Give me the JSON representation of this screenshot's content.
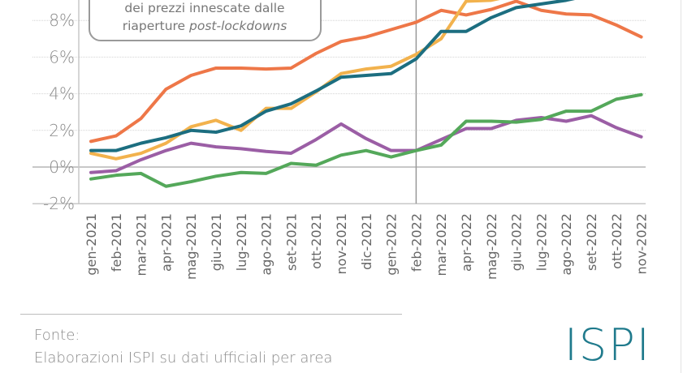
{
  "chart_data": {
    "type": "line",
    "categories": [
      "gen-2021",
      "feb-2021",
      "mar-2021",
      "apr-2021",
      "mag-2021",
      "giu-2021",
      "lug-2021",
      "ago-2021",
      "set-2021",
      "ott-2021",
      "nov-2021",
      "dic-2021",
      "gen-2022",
      "feb-2022",
      "mar-2022",
      "apr-2022",
      "mag-2022",
      "giu-2022",
      "lug-2022",
      "ago-2022",
      "set-2022",
      "ott-2022",
      "nov-2022"
    ],
    "yticks": [
      "-2%",
      "0%",
      "2%",
      "4%",
      "6%",
      "8%"
    ],
    "ylim": [
      -2,
      9
    ],
    "grid": true,
    "marker_category": "feb-2022",
    "annotation": {
      "line1": "dei prezzi innescate dalle",
      "line2_plain": "riaperture ",
      "line2_italic": "post-lockdowns"
    },
    "series": [
      {
        "color": "#ee7748",
        "values": [
          1.4,
          1.7,
          2.65,
          4.25,
          5.0,
          5.4,
          5.4,
          5.35,
          5.4,
          6.2,
          6.85,
          7.1,
          7.5,
          7.9,
          8.55,
          8.3,
          8.6,
          9.05,
          8.55,
          8.35,
          8.3,
          7.75,
          7.1
        ]
      },
      {
        "color": "#f2b24d",
        "values": [
          0.75,
          0.45,
          0.75,
          1.3,
          2.2,
          2.55,
          2.0,
          3.2,
          3.2,
          4.1,
          5.1,
          5.35,
          5.5,
          6.15,
          7.0,
          9.05,
          9.1,
          9.4,
          null,
          null,
          null,
          null,
          null
        ]
      },
      {
        "color": "#1c6e80",
        "values": [
          0.9,
          0.9,
          1.3,
          1.6,
          2.0,
          1.9,
          2.25,
          3.05,
          3.45,
          4.15,
          4.9,
          5.0,
          5.1,
          5.9,
          7.4,
          7.4,
          8.15,
          8.7,
          8.9,
          9.1,
          9.4,
          null,
          null
        ]
      },
      {
        "color": "#9b5ea5",
        "values": [
          -0.3,
          -0.2,
          0.4,
          0.9,
          1.3,
          1.1,
          1.0,
          0.85,
          0.75,
          1.5,
          2.35,
          1.55,
          0.9,
          0.9,
          1.5,
          2.1,
          2.1,
          2.55,
          2.7,
          2.5,
          2.8,
          2.15,
          1.65
        ]
      },
      {
        "color": "#54a85a",
        "values": [
          -0.65,
          -0.45,
          -0.35,
          -1.05,
          -0.8,
          -0.5,
          -0.3,
          -0.35,
          0.2,
          0.1,
          0.65,
          0.9,
          0.55,
          0.9,
          1.2,
          2.5,
          2.5,
          2.45,
          2.6,
          3.05,
          3.05,
          3.7,
          3.95
        ]
      }
    ]
  },
  "footer": {
    "source_label": "Fonte:",
    "source_text": "Elaborazioni ISPI su dati ufficiali per area",
    "logo": "ISPI"
  }
}
